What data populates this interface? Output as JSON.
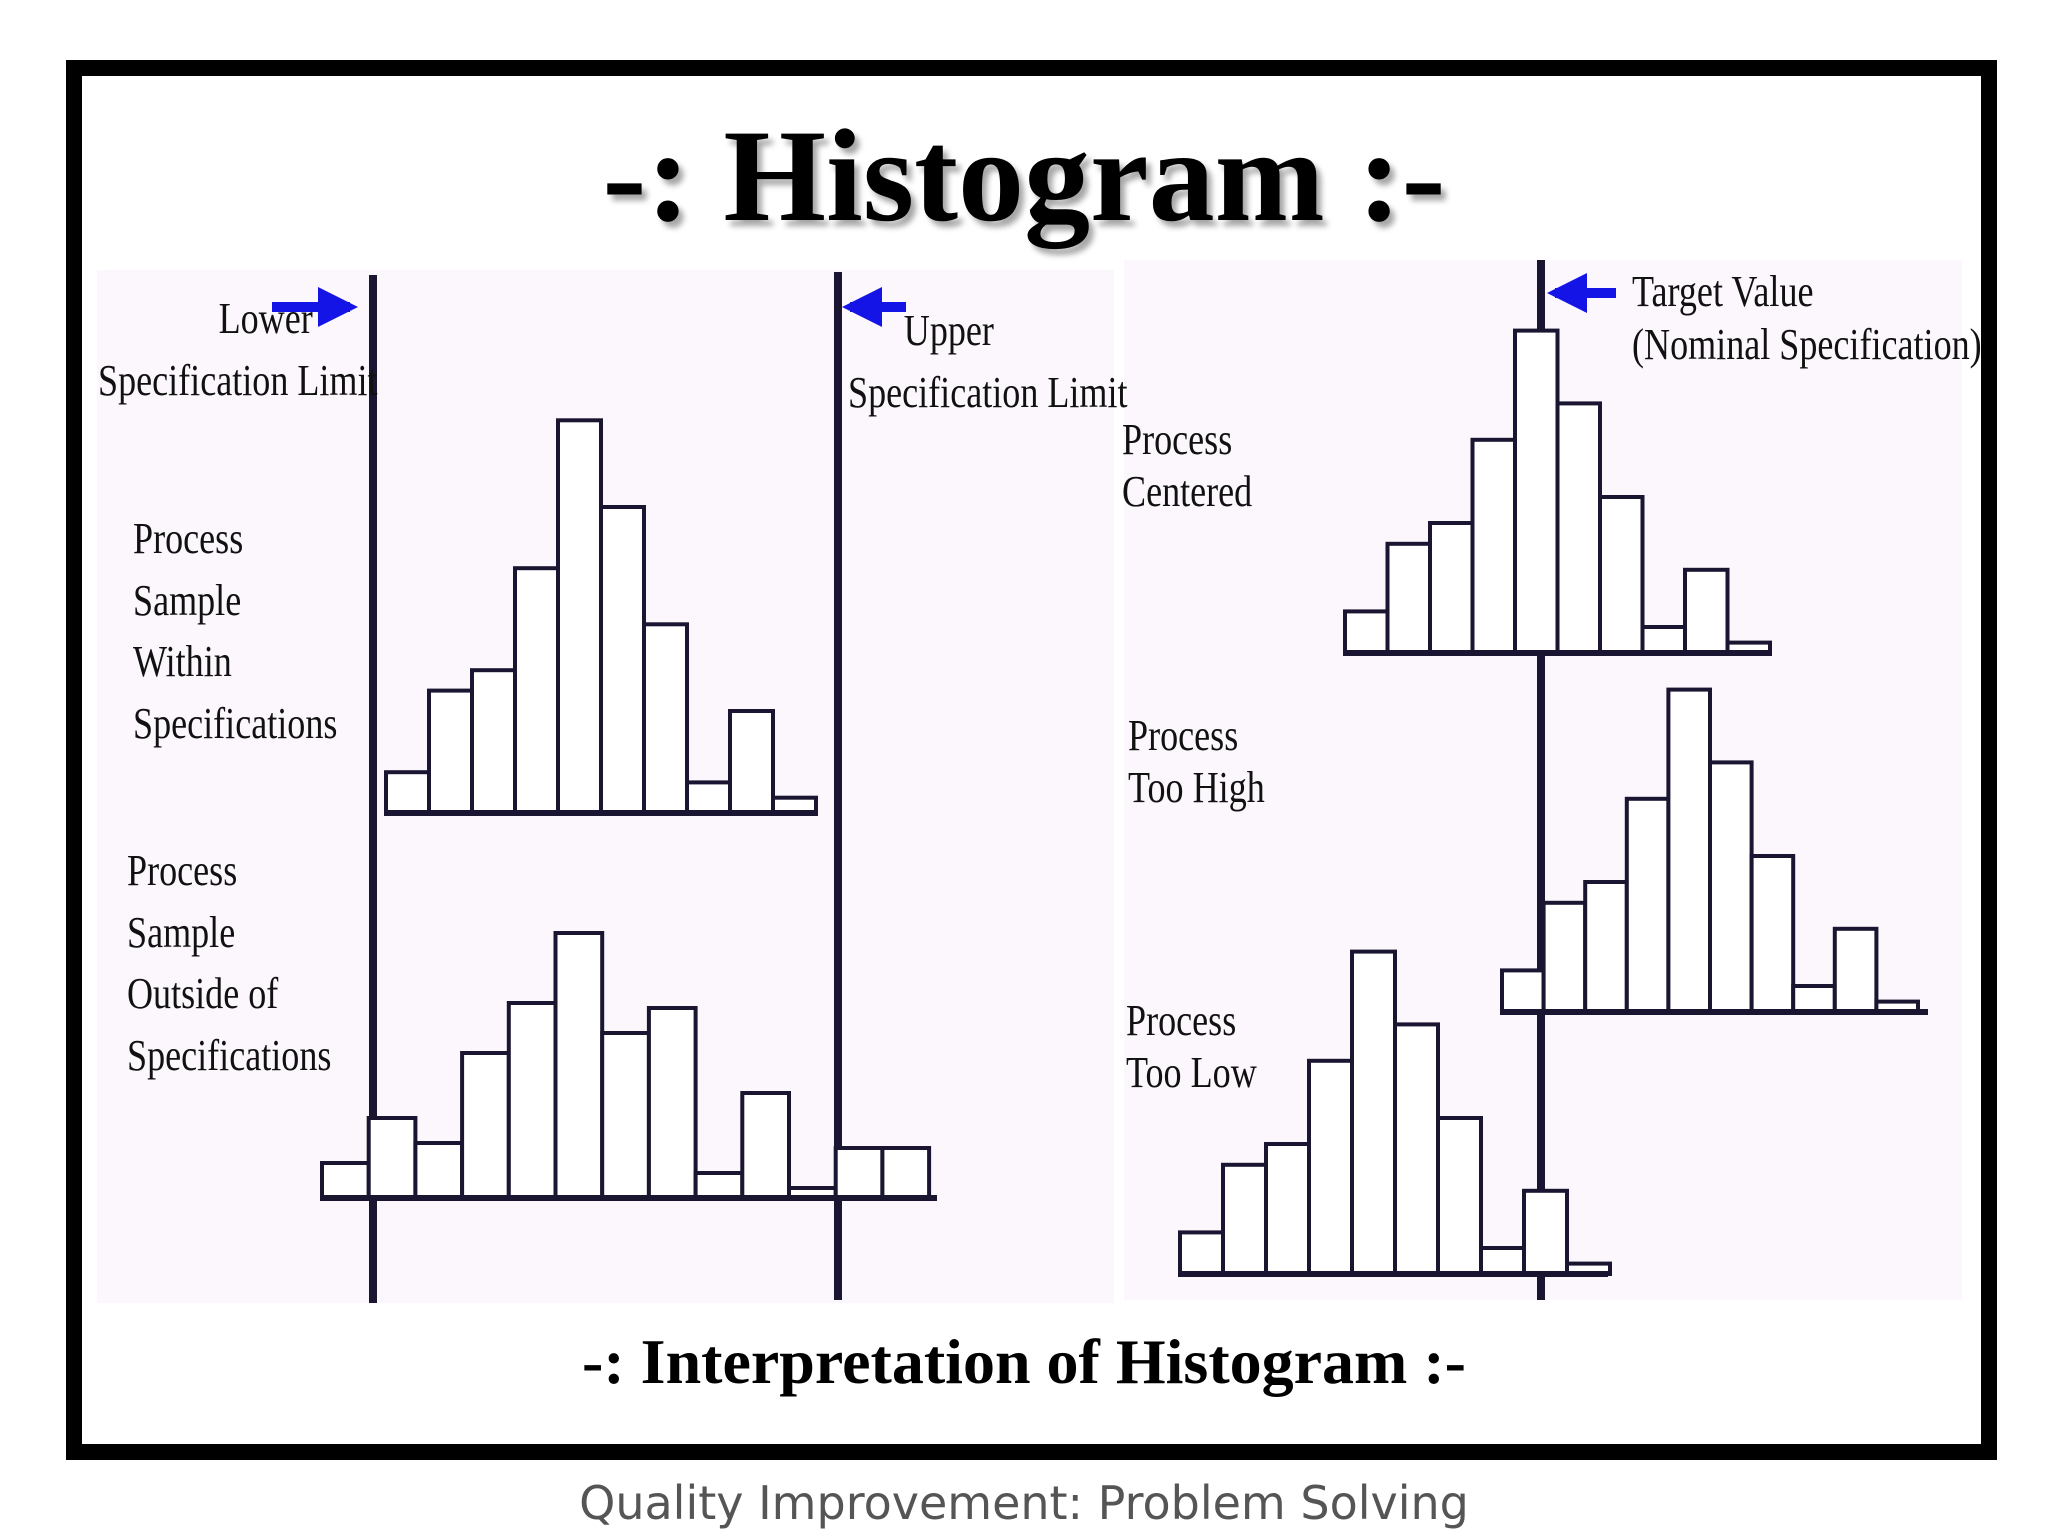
{
  "title": "-: Histogram :-",
  "subtitle": "-: Interpretation of Histogram :-",
  "footer": "Quality Improvement: Problem Solving",
  "colors": {
    "arrow": "#1414e6",
    "bars": "#1a1530",
    "panel": "#fbf7fc"
  },
  "left_panel": {
    "lower_limit": [
      "Lower",
      "Specification Limit"
    ],
    "upper_limit": [
      "Upper",
      "Specification Limit"
    ],
    "within": [
      "Process",
      "Sample",
      "Within",
      "Specifications"
    ],
    "outside": [
      "Process",
      "Sample",
      "Outside of",
      "Specifications"
    ]
  },
  "right_panel": {
    "target": [
      "Target Value",
      "(Nominal Specification)"
    ],
    "centered": [
      "Process",
      "Centered"
    ],
    "too_high": [
      "Process",
      "Too High"
    ],
    "too_low": [
      "Process",
      "Too Low"
    ]
  },
  "histograms": {
    "within_specifications": [
      8,
      24,
      28,
      48,
      77,
      60,
      37,
      6,
      20,
      3
    ],
    "outside_specifications": [
      7,
      16,
      11,
      29,
      39,
      53,
      33,
      38,
      5,
      21,
      2,
      10,
      10
    ],
    "centered": [
      8,
      21,
      25,
      41,
      62,
      48,
      30,
      5,
      16,
      2
    ],
    "too_high": [
      8,
      21,
      25,
      41,
      62,
      48,
      30,
      5,
      16,
      2
    ],
    "too_low": [
      8,
      21,
      25,
      41,
      62,
      48,
      30,
      5,
      16,
      2
    ]
  }
}
